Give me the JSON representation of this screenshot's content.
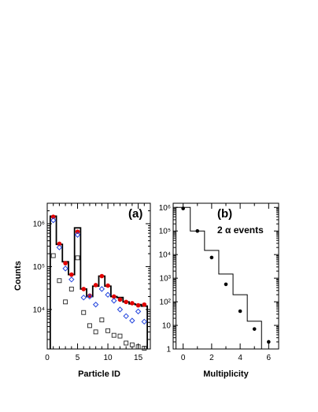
{
  "chart_data": [
    {
      "type": "scatter",
      "panel_label": "(a)",
      "xlabel": "Particle ID",
      "ylabel": "Counts",
      "xlim": [
        0,
        17
      ],
      "ylim": [
        1200,
        3000000
      ],
      "yscale": "log",
      "xticks": [
        "0",
        "5",
        "10",
        "15"
      ],
      "yticks": [
        {
          "value": 10000,
          "label": "10⁴"
        },
        {
          "value": 100000,
          "label": "10⁵"
        },
        {
          "value": 1000000,
          "label": "10⁶"
        }
      ],
      "histogram": {
        "color": "#000000",
        "bin_width": 1,
        "bins_start": 0.5,
        "values": [
          1500000,
          330000,
          130000,
          65000,
          800000,
          30000,
          20000,
          35000,
          60000,
          35000,
          20000,
          19000,
          15000,
          13500,
          13000,
          12000
        ]
      },
      "series": [
        {
          "marker": "filled-circle",
          "color": "#e00000",
          "x": [
            1,
            2,
            3,
            4,
            5,
            6,
            7,
            8,
            9,
            10,
            11,
            12,
            13,
            14,
            15,
            16
          ],
          "values": [
            1450000,
            340000,
            120000,
            65000,
            650000,
            30000,
            21000,
            37000,
            60000,
            36000,
            20000,
            17000,
            15000,
            14000,
            12500,
            13000
          ]
        },
        {
          "marker": "open-diamond",
          "color": "#2244dd",
          "x": [
            1,
            2,
            3,
            4,
            5,
            6,
            7,
            8,
            9,
            10,
            11,
            12,
            13,
            14,
            15,
            16
          ],
          "values": [
            1200000,
            280000,
            90000,
            50000,
            550000,
            19000,
            20000,
            13000,
            30000,
            22000,
            16000,
            10000,
            7000,
            5500,
            9000,
            5200
          ]
        },
        {
          "marker": "open-square",
          "color": "#222222",
          "x": [
            1,
            2,
            3,
            4,
            5,
            6,
            7,
            8,
            9,
            10,
            11,
            12,
            13,
            14,
            15,
            16
          ],
          "values": [
            180000,
            47000,
            15000,
            30000,
            160000,
            8500,
            4200,
            3000,
            5700,
            3200,
            2500,
            2400,
            1650,
            1500,
            1350,
            1250
          ]
        }
      ]
    },
    {
      "type": "scatter",
      "panel_label": "(b)",
      "annotation": "2 α events",
      "xlabel": "Multiplicity",
      "xlim": [
        -0.7,
        6.7
      ],
      "ylim": [
        1,
        1500000
      ],
      "yscale": "log",
      "xticks": [
        "0",
        "2",
        "4",
        "6"
      ],
      "yticks": [
        {
          "value": 1,
          "label": "1"
        },
        {
          "value": 10,
          "label": "10"
        },
        {
          "value": 100,
          "label": "10²"
        },
        {
          "value": 1000,
          "label": "10³"
        },
        {
          "value": 10000,
          "label": "10⁴"
        },
        {
          "value": 100000,
          "label": "10⁵"
        },
        {
          "value": 1000000,
          "label": "10⁶"
        }
      ],
      "histogram": {
        "color": "#000000",
        "bin_width": 1,
        "bins_start": -0.5,
        "values": [
          1000000,
          100000,
          15000,
          1500,
          200,
          15,
          1
        ]
      },
      "series": [
        {
          "marker": "filled-circle",
          "color": "#000000",
          "x": [
            0,
            1,
            2,
            3,
            4,
            5,
            6
          ],
          "values": [
            900000,
            100000,
            7500,
            550,
            40,
            7,
            2
          ]
        }
      ]
    }
  ]
}
